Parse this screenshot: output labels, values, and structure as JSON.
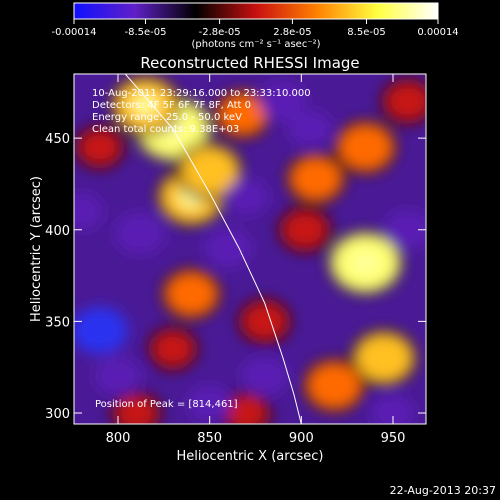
{
  "chart_data": {
    "type": "heatmap",
    "title": "Reconstructed RHESSI Image",
    "xlabel": "Heliocentric X (arcsec)",
    "ylabel": "Heliocentric Y (arcsec)",
    "xlim": [
      776,
      968
    ],
    "ylim": [
      294,
      485
    ],
    "x_ticks": [
      {
        "value": 800,
        "label": "800"
      },
      {
        "value": 850,
        "label": "850"
      },
      {
        "value": 900,
        "label": "900"
      },
      {
        "value": 950,
        "label": "950"
      }
    ],
    "y_ticks": [
      {
        "value": 300,
        "label": "300"
      },
      {
        "value": 350,
        "label": "350"
      },
      {
        "value": 400,
        "label": "400"
      },
      {
        "value": 450,
        "label": "450"
      }
    ],
    "annotations": [
      "10-Aug-2011 23:29:16.000 to 23:33:10.000",
      "Detectors: 4F 5F 6F 7F 8F, Att 0",
      "Energy range: 25.0 - 50.0 keV",
      "Clean   total counts: 9.38E+03"
    ],
    "peak_label": "Position of Peak = [814,461]",
    "peak_position": [
      814,
      461
    ],
    "colorbar": {
      "min": -0.00014,
      "max": 0.00014,
      "tick_labels": [
        {
          "value": -0.00014,
          "label": "-0.00014"
        },
        {
          "value": -8.5e-05,
          "label": "-8.5e-05"
        },
        {
          "value": -2.8e-05,
          "label": "-2.8e-05"
        },
        {
          "value": 2.8e-05,
          "label": "2.8e-05"
        },
        {
          "value": 8.5e-05,
          "label": "8.5e-05"
        },
        {
          "value": 0.00014,
          "label": "0.00014"
        }
      ],
      "unit_text": "(photons cm⁻² s⁻¹ asec⁻²)",
      "colors": [
        "#1010ff",
        "#6020c8",
        "#000000",
        "#c81010",
        "#ff8000",
        "#ffff40",
        "#ffffff"
      ]
    },
    "limb_curve": [
      [
        804,
        485
      ],
      [
        830,
        455
      ],
      [
        850,
        420
      ],
      [
        866,
        390
      ],
      [
        880,
        360
      ],
      [
        890,
        330
      ],
      [
        896,
        310
      ],
      [
        900,
        294
      ]
    ],
    "hotspots": [
      {
        "x": 830,
        "y": 455,
        "value": 0.00013
      },
      {
        "x": 815,
        "y": 468,
        "value": 0.0001
      },
      {
        "x": 840,
        "y": 418,
        "value": 0.0001
      },
      {
        "x": 850,
        "y": 432,
        "value": 9e-05
      },
      {
        "x": 868,
        "y": 463,
        "value": 6e-05
      },
      {
        "x": 840,
        "y": 365,
        "value": 7e-05
      },
      {
        "x": 935,
        "y": 382,
        "value": 0.00012
      },
      {
        "x": 945,
        "y": 330,
        "value": 9e-05
      },
      {
        "x": 935,
        "y": 445,
        "value": 8e-05
      },
      {
        "x": 908,
        "y": 428,
        "value": 7e-05
      },
      {
        "x": 918,
        "y": 315,
        "value": 8e-05
      },
      {
        "x": 880,
        "y": 350,
        "value": 5e-05
      },
      {
        "x": 902,
        "y": 400,
        "value": 5e-05
      },
      {
        "x": 790,
        "y": 445,
        "value": 4e-05
      },
      {
        "x": 810,
        "y": 300,
        "value": 4e-05
      },
      {
        "x": 870,
        "y": 300,
        "value": 4e-05
      },
      {
        "x": 958,
        "y": 470,
        "value": 5e-05
      },
      {
        "x": 830,
        "y": 335,
        "value": 4e-05
      },
      {
        "x": 812,
        "y": 398,
        "value": -7e-05
      },
      {
        "x": 790,
        "y": 345,
        "value": -9e-05
      },
      {
        "x": 800,
        "y": 320,
        "value": -6e-05
      },
      {
        "x": 860,
        "y": 390,
        "value": -6e-05
      },
      {
        "x": 870,
        "y": 418,
        "value": -5e-05
      },
      {
        "x": 890,
        "y": 470,
        "value": -6e-05
      },
      {
        "x": 905,
        "y": 455,
        "value": -5e-05
      },
      {
        "x": 880,
        "y": 320,
        "value": -6e-05
      },
      {
        "x": 958,
        "y": 400,
        "value": -6e-05
      },
      {
        "x": 950,
        "y": 300,
        "value": -5e-05
      },
      {
        "x": 780,
        "y": 410,
        "value": -5e-05
      },
      {
        "x": 850,
        "y": 305,
        "value": -5e-05
      }
    ]
  },
  "footer": {
    "date": "22-Aug-2013 20:37"
  }
}
